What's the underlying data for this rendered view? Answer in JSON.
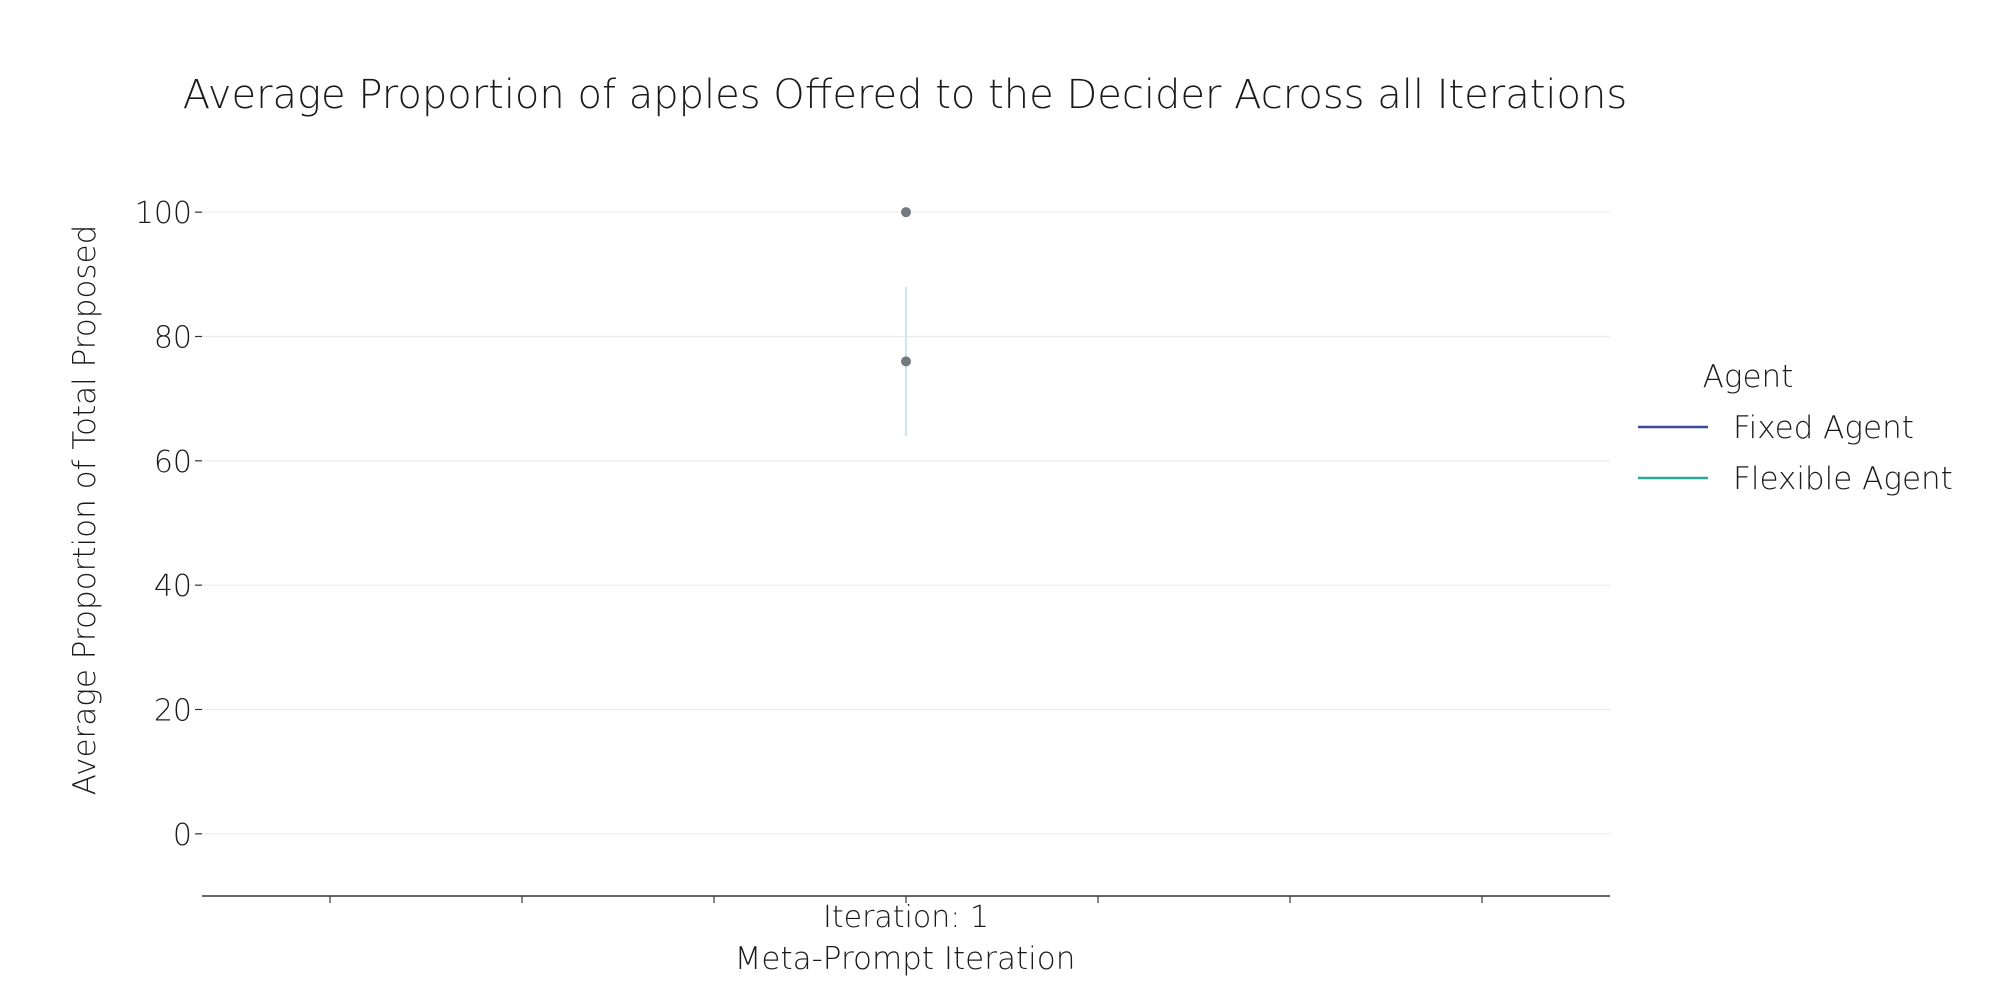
{
  "chart_data": {
    "type": "scatter",
    "title": "Average Proportion of apples Offered to the Decider Across all Iterations",
    "xlabel": "Meta-Prompt Iteration",
    "ylabel": "Average Proportion of Total Proposed",
    "x_categories": [
      "Iteration: 1"
    ],
    "yticks": [
      0,
      20,
      40,
      60,
      80,
      100
    ],
    "ylim": [
      -10,
      110
    ],
    "grid": true,
    "legend": {
      "title": "Agent",
      "placement": "right",
      "entries": [
        {
          "name": "Fixed Agent",
          "color": "#3d4a9c"
        },
        {
          "name": "Flexible Agent",
          "color": "#2aa99a"
        }
      ]
    },
    "series": [
      {
        "name": "Fixed Agent",
        "x": "Iteration: 1",
        "y": 100,
        "err_low": 100,
        "err_high": 100
      },
      {
        "name": "Flexible Agent",
        "x": "Iteration: 1",
        "y": 76,
        "err_low": 64,
        "err_high": 88
      }
    ],
    "colors": {
      "point": "#707a80",
      "errorbar": "#cfe6ee",
      "grid": "#ebebeb",
      "axis": "#333333"
    }
  }
}
